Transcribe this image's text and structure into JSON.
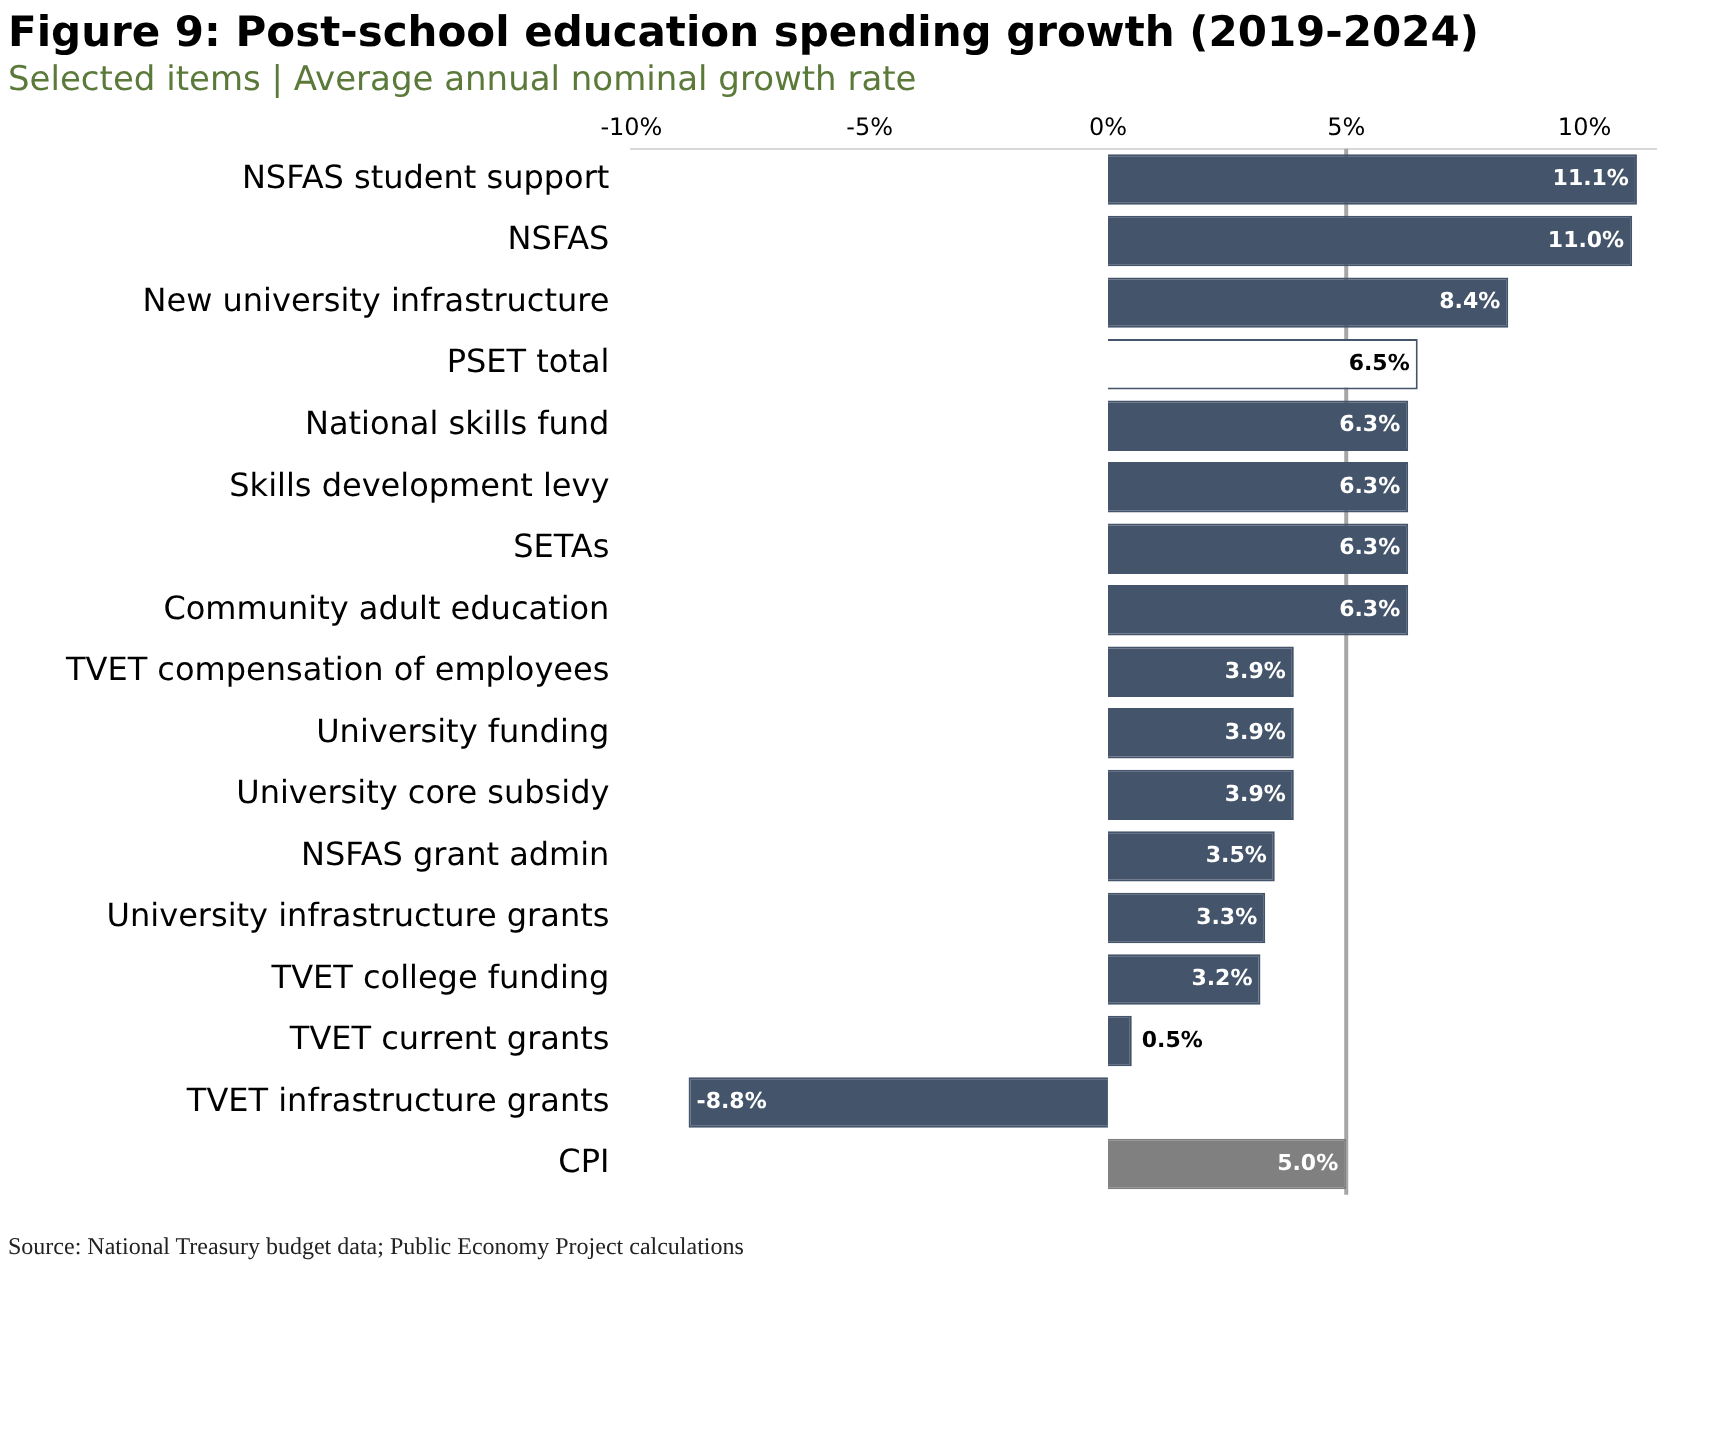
{
  "chart_data": {
    "type": "bar",
    "orientation": "horizontal",
    "title": "Figure 9: Post-school education spending growth (2019-2024)",
    "subtitle": "Selected items | Average annual nominal growth rate",
    "categories": [
      "NSFAS student support",
      "NSFAS",
      "New university infrastructure",
      "PSET total",
      "National skills fund",
      "Skills development levy",
      "SETAs",
      "Community adult education",
      "TVET compensation of employees",
      "University funding",
      "University core subsidy",
      "NSFAS grant admin",
      "University infrastructure grants",
      "TVET college funding",
      "TVET current grants",
      "TVET infrastructure grants",
      "CPI"
    ],
    "values": [
      11.1,
      11.0,
      8.4,
      6.5,
      6.3,
      6.3,
      6.3,
      6.3,
      3.9,
      3.9,
      3.9,
      3.5,
      3.3,
      3.2,
      0.5,
      -8.8,
      5.0
    ],
    "value_labels": [
      "11.1%",
      "11.0%",
      "8.4%",
      "6.5%",
      "6.3%",
      "6.3%",
      "6.3%",
      "6.3%",
      "3.9%",
      "3.9%",
      "3.9%",
      "3.5%",
      "3.3%",
      "3.2%",
      "0.5%",
      "-8.8%",
      "5.0%"
    ],
    "colors": [
      "#44546a",
      "#44546a",
      "#44546a",
      "#ffffff",
      "#44546a",
      "#44546a",
      "#44546a",
      "#44546a",
      "#44546a",
      "#44546a",
      "#44546a",
      "#44546a",
      "#44546a",
      "#44546a",
      "#44546a",
      "#44546a",
      "#808080"
    ],
    "xlim": [
      -10,
      11.5
    ],
    "xticks": [
      {
        "value": -10,
        "label": "-10%"
      },
      {
        "value": -5,
        "label": "-5%"
      },
      {
        "value": 0,
        "label": "0%"
      },
      {
        "value": 5,
        "label": "5%"
      },
      {
        "value": 10,
        "label": "10%"
      }
    ],
    "ref_lines": [
      {
        "axis": "x",
        "value": 5,
        "color": "#a6a6a6"
      }
    ],
    "grid": false,
    "legend": false,
    "annotations": [
      "Source: National Treasury budget data; Public Economy Project calculations"
    ]
  }
}
